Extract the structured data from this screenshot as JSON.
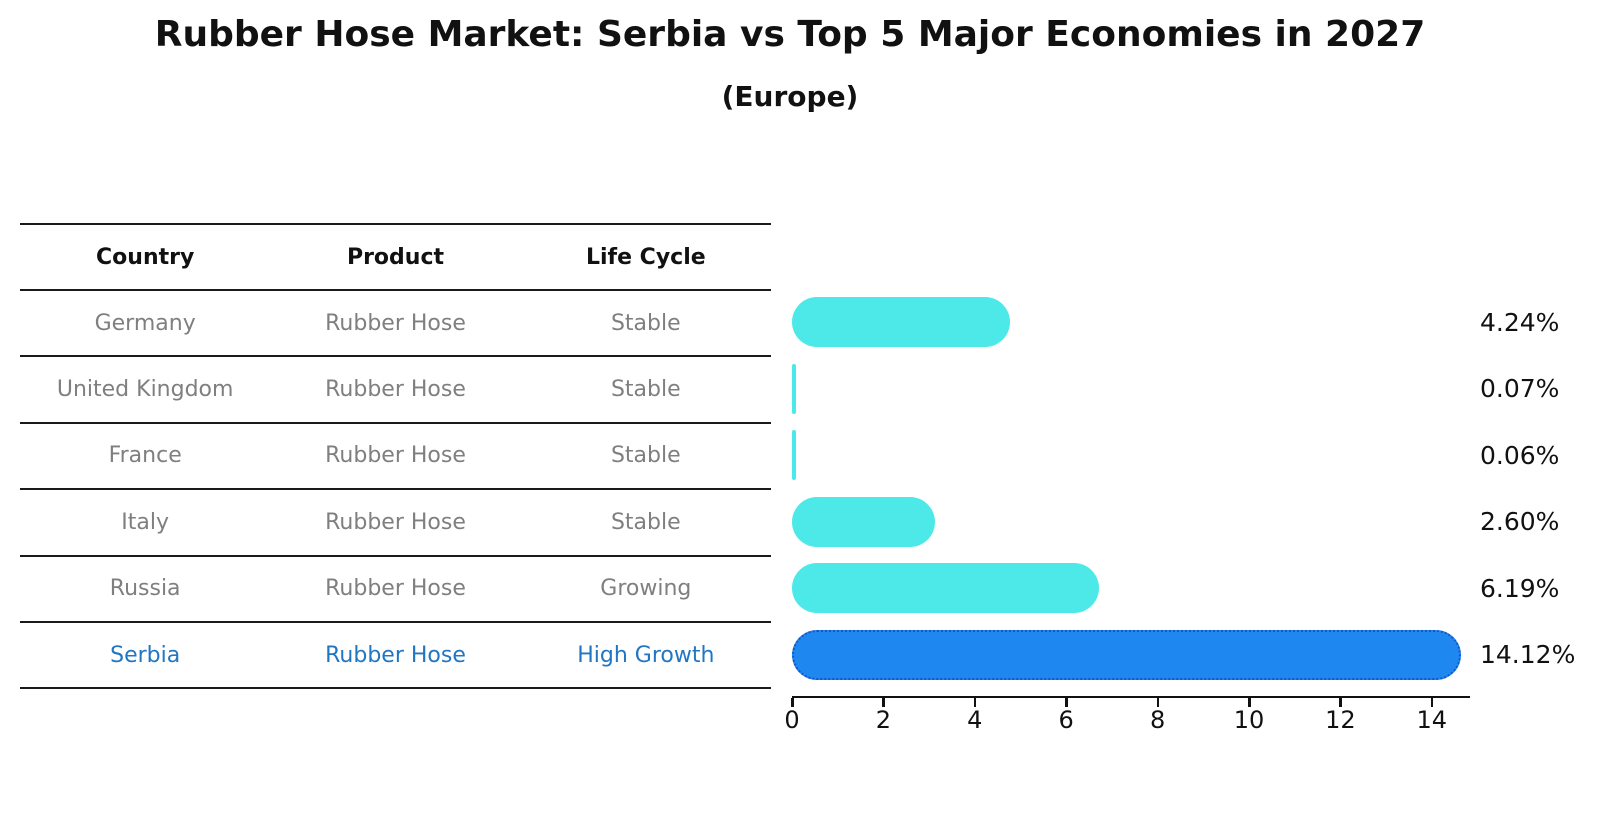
{
  "title": "Rubber Hose Market: Serbia vs Top 5 Major Economies in 2027",
  "subtitle": "(Europe)",
  "table": {
    "headers": [
      "Country",
      "Product",
      "Life Cycle"
    ],
    "rows": [
      {
        "country": "Germany",
        "product": "Rubber Hose",
        "life_cycle": "Stable",
        "highlight": false
      },
      {
        "country": "United Kingdom",
        "product": "Rubber Hose",
        "life_cycle": "Stable",
        "highlight": false
      },
      {
        "country": "France",
        "product": "Rubber Hose",
        "life_cycle": "Stable",
        "highlight": false
      },
      {
        "country": "Italy",
        "product": "Rubber Hose",
        "life_cycle": "Stable",
        "highlight": false
      },
      {
        "country": "Russia",
        "product": "Rubber Hose",
        "life_cycle": "Growing",
        "highlight": false
      },
      {
        "country": "Serbia",
        "product": "Rubber Hose",
        "life_cycle": "High Growth",
        "highlight": true
      }
    ]
  },
  "chart_data": {
    "type": "bar",
    "orientation": "horizontal",
    "title": "Rubber Hose Market: Serbia vs Top 5 Major Economies in 2027",
    "subtitle": "(Europe)",
    "categories": [
      "Germany",
      "United Kingdom",
      "France",
      "Italy",
      "Russia",
      "Serbia"
    ],
    "values": [
      4.24,
      0.07,
      0.06,
      2.6,
      6.19,
      14.12
    ],
    "value_labels": [
      "4.24%",
      "0.07%",
      "0.06%",
      "2.60%",
      "6.19%",
      "14.12%"
    ],
    "xlabel": "",
    "ylabel": "",
    "xlim": [
      0,
      14.8
    ],
    "x_ticks": [
      0,
      2,
      4,
      6,
      8,
      10,
      12,
      14
    ],
    "grid": false,
    "legend": false,
    "bar_color": "#4de8e8",
    "highlight_index": 5,
    "highlight_bar_color": "#1e87f0",
    "highlight_bar_edge": "#1456c8",
    "highlight_text_color": "#2176c4",
    "text_color_muted": "#7f7f7f"
  }
}
